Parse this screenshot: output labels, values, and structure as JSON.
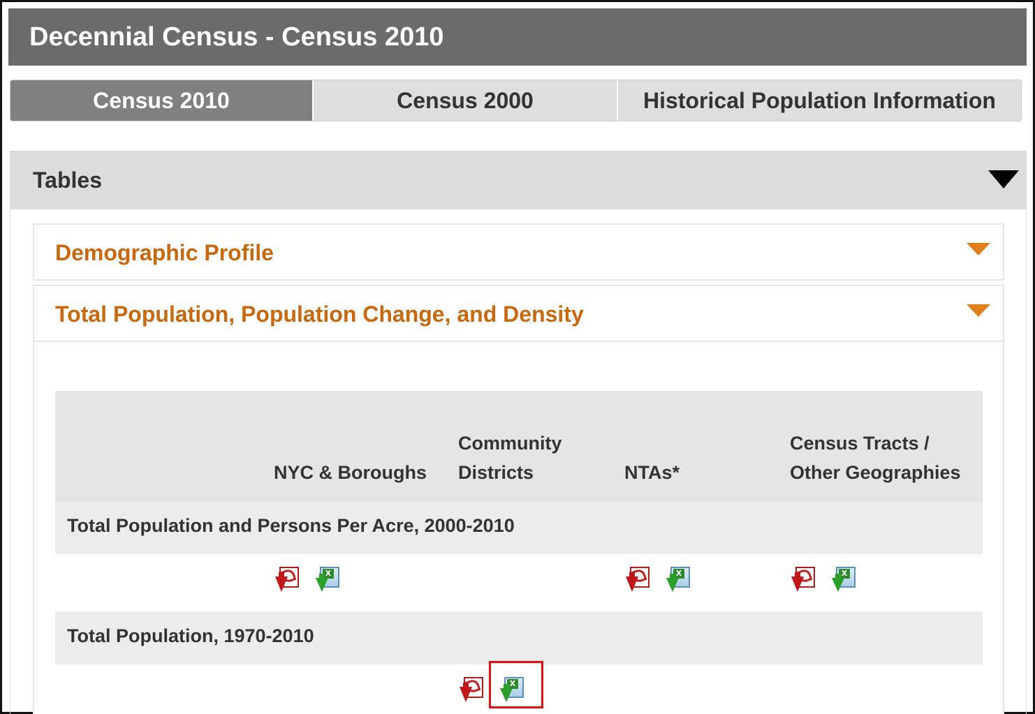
{
  "header": {
    "title": "Decennial Census - Census 2010"
  },
  "tabs": [
    {
      "label": "Census 2010",
      "active": true
    },
    {
      "label": "Census 2000",
      "active": false
    },
    {
      "label": "Historical Population Information",
      "active": false
    }
  ],
  "tables": {
    "title": "Tables",
    "sections": [
      {
        "title": "Demographic Profile"
      },
      {
        "title": "Total Population, Population Change, and Density"
      }
    ],
    "columns": [
      "NYC & Boroughs",
      "Community Districts",
      "NTAs*",
      "Census Tracts / Other Geographies"
    ],
    "rows": [
      {
        "label": "Total Population and Persons Per Acre, 2000-2010",
        "downloads": [
          "NYC & Boroughs",
          "NTAs*",
          "Census Tracts / Other Geographies"
        ]
      },
      {
        "label": "Total Population, 1970-2010",
        "downloads": [
          "Community Districts"
        ]
      }
    ]
  },
  "icons": {
    "pdf": "pdf-download-icon",
    "excel": "excel-download-icon"
  },
  "colors": {
    "header_bg": "#6b6b6b",
    "active_tab": "#808080",
    "accent": "#c8680f",
    "highlight": "#e01010"
  }
}
